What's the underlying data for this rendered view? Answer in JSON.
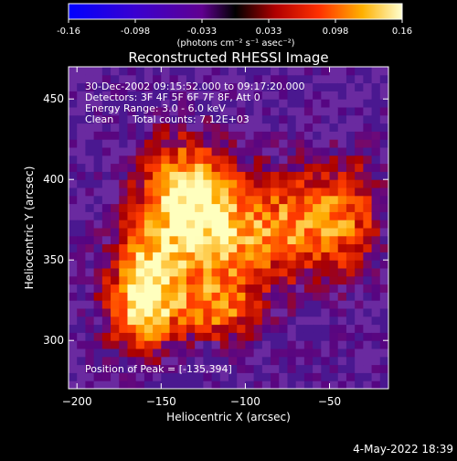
{
  "chart_data": {
    "type": "heatmap",
    "title": "Reconstructed RHESSI Image",
    "xlabel": "Heliocentric X (arcsec)",
    "ylabel": "Heliocentric Y (arcsec)",
    "xlim": [
      -205,
      -15
    ],
    "ylim": [
      270,
      470
    ],
    "xticks": [
      -200,
      -150,
      -100,
      -50
    ],
    "yticks": [
      300,
      350,
      400,
      450
    ],
    "colorbar": {
      "min": -0.16,
      "max": 0.16,
      "ticks": [
        "-0.16",
        "-0.098",
        "-0.033",
        "0.033",
        "0.098",
        "0.16"
      ],
      "units": "(photons cm⁻² s⁻¹ asec⁻²)"
    },
    "annotations": [
      "30-Dec-2002 09:15:52.000 to 09:17:20.000",
      "Detectors: 3F 4F 5F 6F 7F 8F, Att 0",
      "Energy Range: 3.0 - 6.0 keV",
      "Clean",
      "Total counts: 7.12E+03"
    ],
    "peak_label": "Position of Peak = [-135,394]",
    "peak": [
      -135,
      394
    ]
  },
  "footer": {
    "date": "4-May-2022 18:39"
  }
}
